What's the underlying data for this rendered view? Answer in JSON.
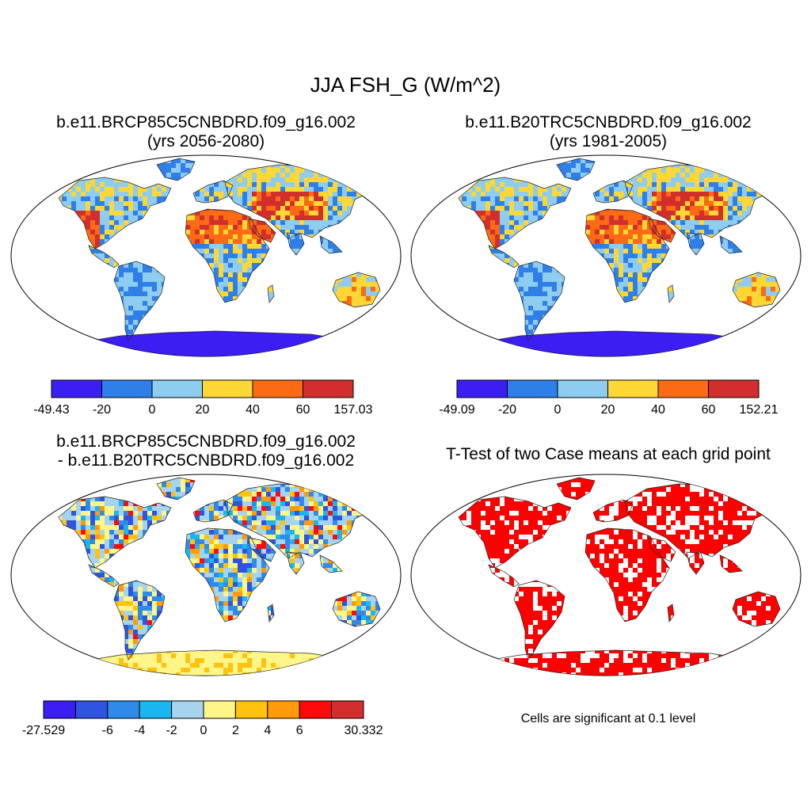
{
  "main_title": "JJA FSH_G (W/m^2)",
  "panels": [
    {
      "id": "case",
      "title_line1": "b.e11.BRCP85C5CNBDRD.f09_g16.002",
      "title_line2": "(yrs 2056-2080)",
      "colors": [
        "#3b1ff2",
        "#2f7fe8",
        "#8ecdf0",
        "#fdd835",
        "#fb6a14",
        "#d22e2e"
      ],
      "labels": [
        "-49.43",
        "-20",
        "0",
        "20",
        "40",
        "60",
        "157.03"
      ]
    },
    {
      "id": "control",
      "title_line1": "b.e11.B20TRC5CNBDRD.f09_g16.002",
      "title_line2": "(yrs 1981-2005)",
      "colors": [
        "#3b1ff2",
        "#2f7fe8",
        "#8ecdf0",
        "#fdd835",
        "#fb6a14",
        "#d22e2e"
      ],
      "labels": [
        "-49.09",
        "-20",
        "0",
        "20",
        "40",
        "60",
        "152.21"
      ]
    },
    {
      "id": "difference",
      "title_line1": "b.e11.BRCP85C5CNBDRD.f09_g16.002",
      "title_line2": "- b.e11.B20TRC5CNBDRD.f09_g16.002",
      "colors": [
        "#3b1ff2",
        "#2f55e0",
        "#2f8ae8",
        "#1ab6f0",
        "#a6d3ee",
        "#fff68a",
        "#ffc20e",
        "#ff9a0a",
        "#ff0a0a",
        "#d22e2e"
      ],
      "labels": [
        "-27.529",
        "",
        "-6",
        "-4",
        "-2",
        "0",
        "2",
        "4",
        "6",
        "",
        "30.332"
      ]
    },
    {
      "id": "ttest",
      "title_line1": "T-Test of two Case means at each grid point",
      "title_line2": "",
      "colors": [
        "#ff0000"
      ],
      "labels": []
    }
  ],
  "significance_note": "Cells are significant at 0.1 level"
}
